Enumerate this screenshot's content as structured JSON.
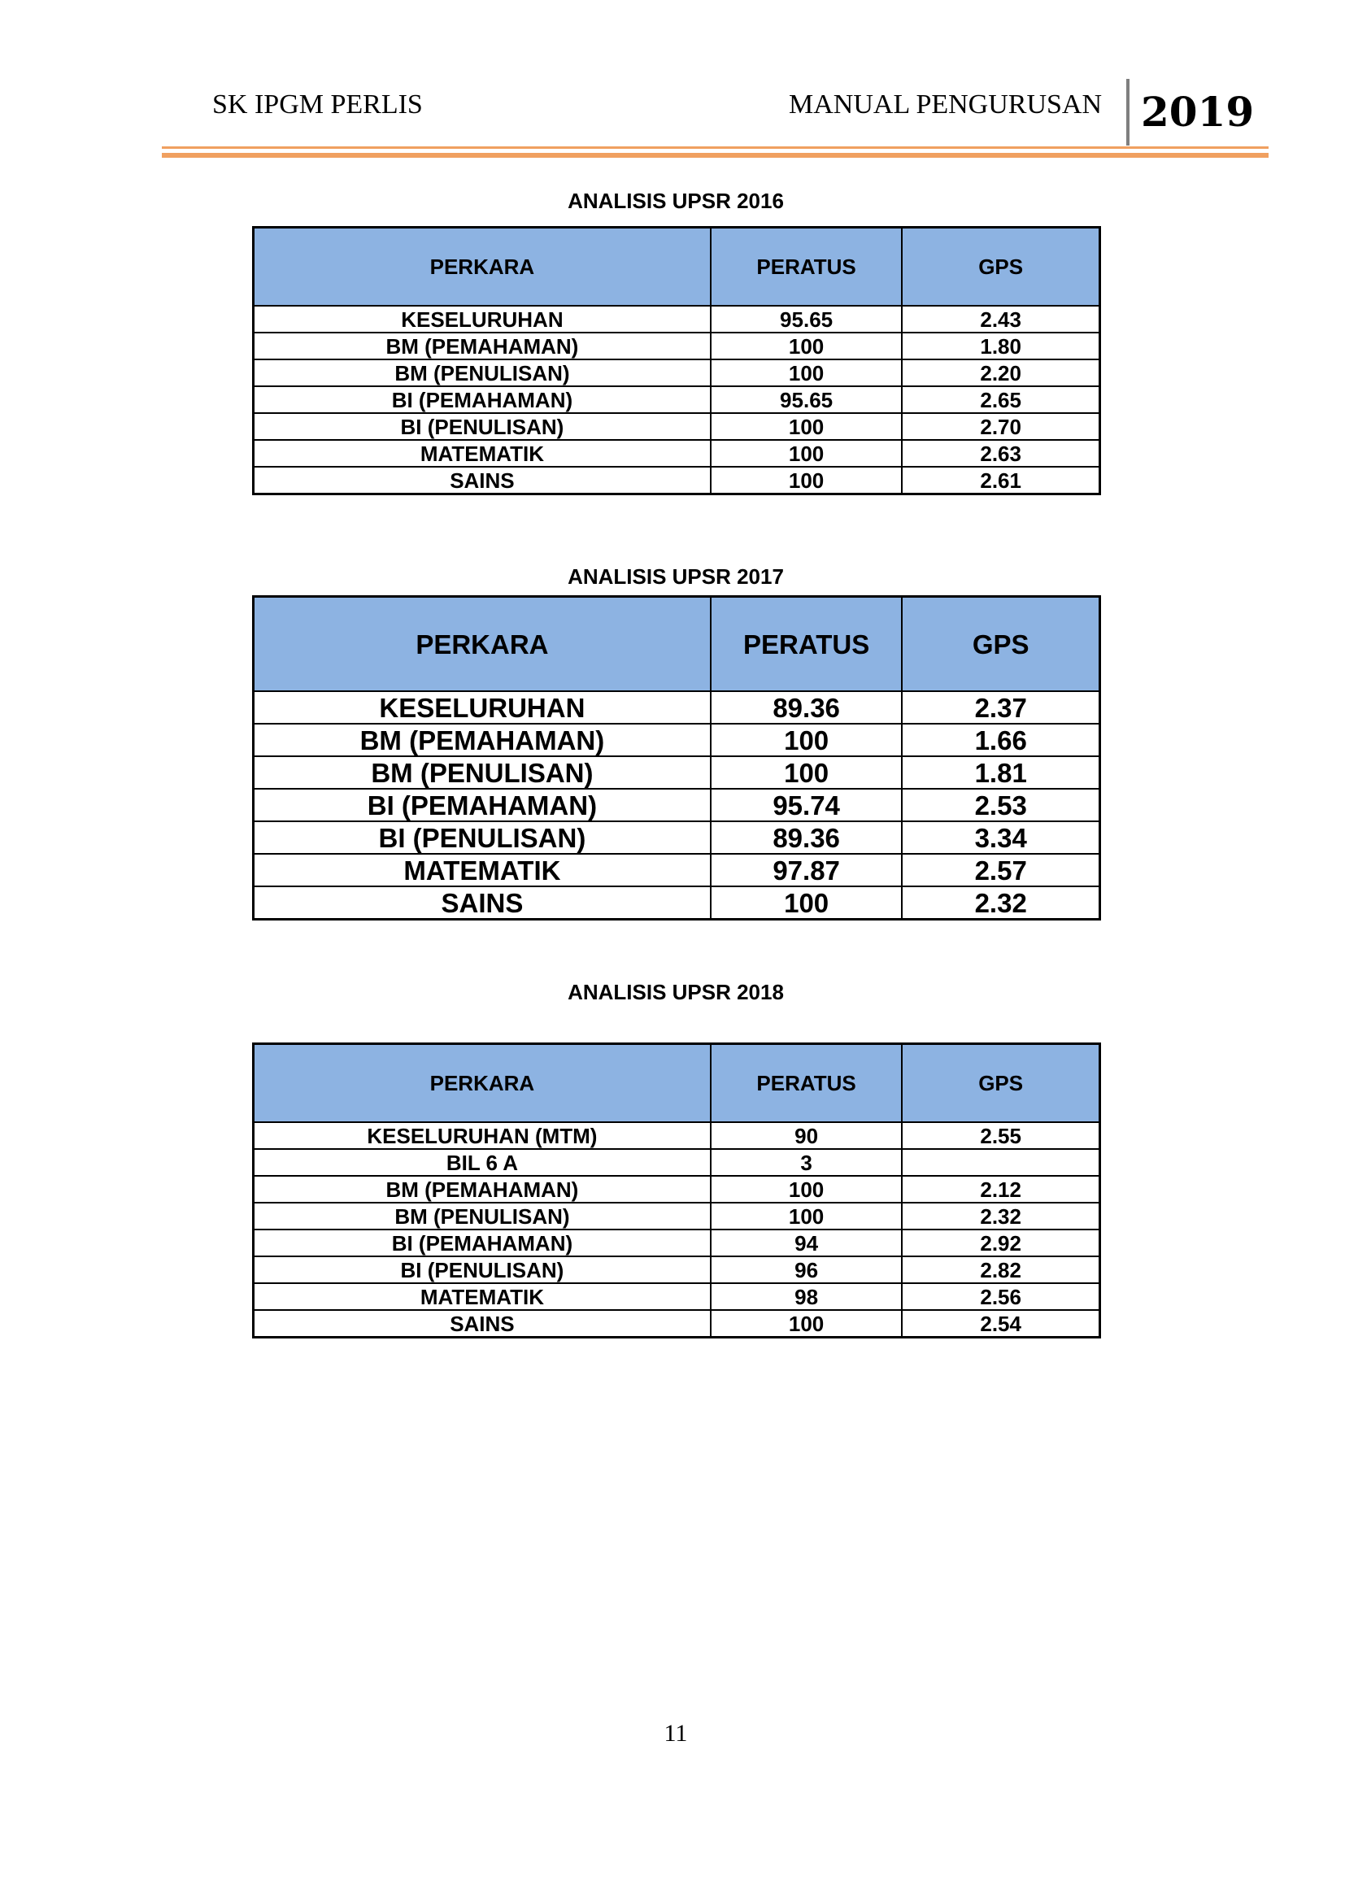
{
  "header": {
    "left": "SK IPGM PERLIS",
    "right": "MANUAL PENGURUSAN",
    "year": "2019"
  },
  "tables": [
    {
      "title": "ANALISIS UPSR 2016",
      "columns": [
        "PERKARA",
        "PERATUS",
        "GPS"
      ],
      "rows": [
        [
          "KESELURUHAN",
          "95.65",
          "2.43"
        ],
        [
          "BM (PEMAHAMAN)",
          "100",
          "1.80"
        ],
        [
          "BM (PENULISAN)",
          "100",
          "2.20"
        ],
        [
          "BI (PEMAHAMAN)",
          "95.65",
          "2.65"
        ],
        [
          "BI (PENULISAN)",
          "100",
          "2.70"
        ],
        [
          "MATEMATIK",
          "100",
          "2.63"
        ],
        [
          "SAINS",
          "100",
          "2.61"
        ]
      ]
    },
    {
      "title": "ANALISIS UPSR 2017",
      "columns": [
        "PERKARA",
        "PERATUS",
        "GPS"
      ],
      "rows": [
        [
          "KESELURUHAN",
          "89.36",
          "2.37"
        ],
        [
          "BM (PEMAHAMAN)",
          "100",
          "1.66"
        ],
        [
          "BM (PENULISAN)",
          "100",
          "1.81"
        ],
        [
          "BI (PEMAHAMAN)",
          "95.74",
          "2.53"
        ],
        [
          "BI (PENULISAN)",
          "89.36",
          "3.34"
        ],
        [
          "MATEMATIK",
          "97.87",
          "2.57"
        ],
        [
          "SAINS",
          "100",
          "2.32"
        ]
      ]
    },
    {
      "title": "ANALISIS UPSR 2018",
      "columns": [
        "PERKARA",
        "PERATUS",
        "GPS"
      ],
      "rows": [
        [
          "KESELURUHAN (MTM)",
          "90",
          "2.55"
        ],
        [
          "BIL 6 A",
          "3",
          ""
        ],
        [
          "BM (PEMAHAMAN)",
          "100",
          "2.12"
        ],
        [
          "BM (PENULISAN)",
          "100",
          "2.32"
        ],
        [
          "BI (PEMAHAMAN)",
          "94",
          "2.92"
        ],
        [
          "BI (PENULISAN)",
          "96",
          "2.82"
        ],
        [
          "MATEMATIK",
          "98",
          "2.56"
        ],
        [
          "SAINS",
          "100",
          "2.54"
        ]
      ]
    }
  ],
  "page_number": "11",
  "colors": {
    "header_fill": "#8db3e2",
    "rule": "#f0a060"
  }
}
